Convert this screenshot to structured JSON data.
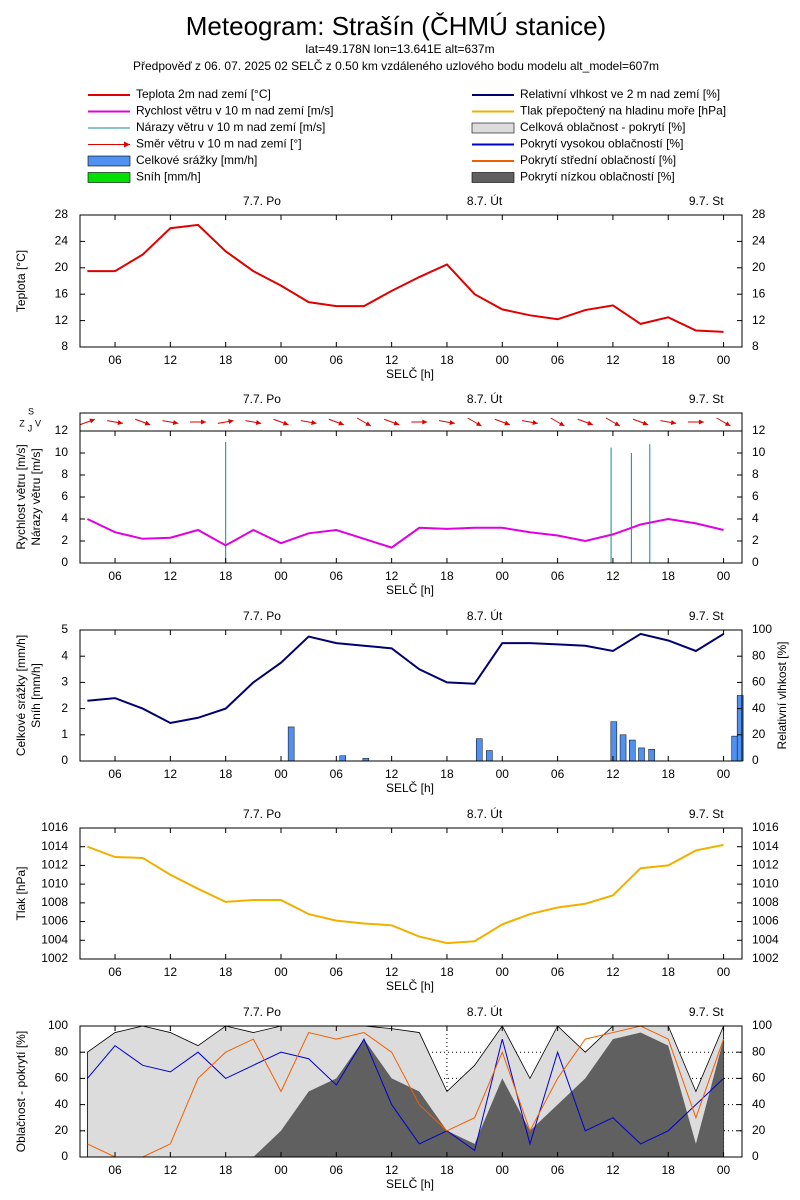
{
  "header": {
    "title": "Meteogram: Strašín (ČHMÚ stanice)",
    "location": "lat=49.178N lon=13.641E alt=637m",
    "forecast": "Předpověď z 06. 07. 2025 02 SELČ z 0.50 km vzdáleného uzlového bodu modelu alt_model=607m"
  },
  "chart_data": [
    {
      "type": "line",
      "ylabel": [
        "Teplota [°C]"
      ],
      "xlabel": "SELČ [h]",
      "xlim": [
        2.2,
        74
      ],
      "ylim": [
        8,
        28
      ],
      "yticks": [
        8,
        12,
        16,
        20,
        24,
        28
      ],
      "mirror_y": true,
      "xticks": [
        {
          "value": 6,
          "label": "06"
        },
        12,
        18,
        {
          "value": 24,
          "label": "00"
        },
        {
          "value": 30,
          "label": "06"
        },
        {
          "value": 36,
          "label": "12"
        },
        {
          "value": 42,
          "label": "18"
        },
        {
          "value": 48,
          "label": "00"
        },
        {
          "value": 54,
          "label": "06"
        },
        {
          "value": 60,
          "label": "12"
        },
        {
          "value": 66,
          "label": "18"
        },
        {
          "value": 72,
          "label": "00"
        }
      ],
      "day_ticks": [
        {
          "value": 24,
          "label": "7.7. Po"
        },
        {
          "value": 48,
          "label": "8.7. Út"
        },
        {
          "value": 72,
          "label": "9.7. St"
        }
      ],
      "x": [
        3,
        6,
        9,
        12,
        15,
        18,
        21,
        24,
        27,
        30,
        33,
        36,
        39,
        42,
        45,
        48,
        51,
        54,
        57,
        60,
        63,
        66,
        69,
        72
      ],
      "series": [
        {
          "name": "Teplota 2m nad zemí [°C]",
          "color": "#e00000",
          "kind": "line",
          "values": [
            19.5,
            19.5,
            22,
            26,
            26.5,
            22.5,
            19.5,
            17.3,
            14.8,
            14.2,
            14.2,
            16.5,
            18.6,
            20.5,
            16,
            13.7,
            12.8,
            12.2,
            13.6,
            14.3,
            11.5,
            12.5,
            10.5,
            10.3
          ]
        }
      ]
    },
    {
      "type": "wind",
      "ylabel": [
        "Rychlost větru [m/s]",
        "Nárazy větru [m/s]"
      ],
      "xlabel": "SELČ [h]",
      "compass": [
        "S",
        "Z",
        "J",
        "V"
      ],
      "xlim": [
        2.2,
        74
      ],
      "ylim": [
        0,
        12
      ],
      "yticks": [
        0,
        2,
        4,
        6,
        8,
        10,
        12
      ],
      "mirror_y": true,
      "xticks": [
        {
          "value": 6,
          "label": "06"
        },
        12,
        18,
        {
          "value": 24,
          "label": "00"
        },
        {
          "value": 30,
          "label": "06"
        },
        {
          "value": 36,
          "label": "12"
        },
        {
          "value": 42,
          "label": "18"
        },
        {
          "value": 48,
          "label": "00"
        },
        {
          "value": 54,
          "label": "06"
        },
        {
          "value": 60,
          "label": "12"
        },
        {
          "value": 66,
          "label": "18"
        },
        {
          "value": 72,
          "label": "00"
        }
      ],
      "day_ticks": [
        {
          "value": 24,
          "label": "7.7. Po"
        },
        {
          "value": 48,
          "label": "8.7. Út"
        },
        {
          "value": 72,
          "label": "9.7. St"
        }
      ],
      "x": [
        3,
        6,
        9,
        12,
        15,
        18,
        21,
        24,
        27,
        30,
        33,
        36,
        39,
        42,
        45,
        48,
        51,
        54,
        57,
        60,
        63,
        66,
        69,
        72
      ],
      "series": [
        {
          "name": "Rychlost větru v 10 m nad zemí [m/s]",
          "color": "#e000e0",
          "kind": "line",
          "values": [
            4,
            2.8,
            2.2,
            2.3,
            3,
            1.6,
            3,
            1.8,
            2.7,
            3,
            2.2,
            1.4,
            3.2,
            3.1,
            3.2,
            3.2,
            2.8,
            2.5,
            2,
            2.6,
            3.5,
            4,
            3.6,
            3
          ]
        },
        {
          "name": "Nárazy větru v 10 m nad zemí [m/s]",
          "color": "#108890",
          "kind": "spikes",
          "x": [
            18,
            59.8,
            62,
            64
          ],
          "values": [
            11,
            10.5,
            10,
            10.8
          ]
        },
        {
          "name": "Směr větru v 10 m nad zemí [°]",
          "color": "#e00000",
          "kind": "arrows",
          "values": [
            250,
            280,
            290,
            280,
            270,
            260,
            280,
            290,
            280,
            290,
            300,
            290,
            270,
            280,
            300,
            290,
            280,
            300,
            290,
            300,
            290,
            280,
            270,
            300
          ]
        }
      ]
    },
    {
      "type": "bar",
      "ylabel": [
        "Celkové srážky [mm/h]",
        "Sníh [mm/h]"
      ],
      "y2label": "Relativní vlhkost [%]",
      "xlabel": "SELČ [h]",
      "xlim": [
        2.2,
        74
      ],
      "ylim": [
        0,
        5
      ],
      "yticks": [
        0,
        1,
        2,
        3,
        4,
        5
      ],
      "y2lim": [
        0,
        100
      ],
      "y2ticks": [
        0,
        20,
        40,
        60,
        80,
        100
      ],
      "xticks": [
        {
          "value": 6,
          "label": "06"
        },
        12,
        18,
        {
          "value": 24,
          "label": "00"
        },
        {
          "value": 30,
          "label": "06"
        },
        {
          "value": 36,
          "label": "12"
        },
        {
          "value": 42,
          "label": "18"
        },
        {
          "value": 48,
          "label": "00"
        },
        {
          "value": 54,
          "label": "06"
        },
        {
          "value": 60,
          "label": "12"
        },
        {
          "value": 66,
          "label": "18"
        },
        {
          "value": 72,
          "label": "00"
        }
      ],
      "day_ticks": [
        {
          "value": 24,
          "label": "7.7. Po"
        },
        {
          "value": 48,
          "label": "8.7. Út"
        },
        {
          "value": 72,
          "label": "9.7. St"
        }
      ],
      "x": [
        3,
        6,
        9,
        12,
        15,
        18,
        21,
        24,
        27,
        30,
        33,
        36,
        39,
        42,
        45,
        48,
        51,
        54,
        57,
        60,
        63,
        66,
        69,
        72
      ],
      "series": [
        {
          "name": "Celkové srážky [mm/h]",
          "color": "#5090f0",
          "kind": "bars",
          "x": [
            25.1,
            30.7,
            33.2,
            45.5,
            46.6,
            60.1,
            61.1,
            62.1,
            63.1,
            64.2,
            73.2,
            73.8
          ],
          "values": [
            1.3,
            0.2,
            0.1,
            0.85,
            0.4,
            1.5,
            1,
            0.8,
            0.5,
            0.45,
            0.95,
            2.5
          ]
        },
        {
          "name": "Sníh [mm/h]",
          "color": "#00e000",
          "kind": "bars",
          "x": [
            25.1,
            45.5,
            60.1
          ],
          "values": [
            0,
            0,
            0
          ]
        },
        {
          "name": "Relativní vlhkost ve 2 m nad zemí [%]",
          "color": "#000070",
          "kind": "line",
          "axis": "y2",
          "values": [
            46,
            48,
            40,
            29,
            33,
            40,
            60,
            75,
            95,
            90,
            88,
            86,
            70,
            60,
            59,
            90,
            90,
            89,
            88,
            84,
            97,
            92,
            84,
            97
          ]
        }
      ]
    },
    {
      "type": "line",
      "ylabel": [
        "Tlak [hPa]"
      ],
      "xlabel": "SELČ [h]",
      "xlim": [
        2.2,
        74
      ],
      "ylim": [
        1002,
        1016
      ],
      "yticks": [
        1002,
        1004,
        1006,
        1008,
        1010,
        1012,
        1014,
        1016
      ],
      "mirror_y": true,
      "xticks": [
        {
          "value": 6,
          "label": "06"
        },
        12,
        18,
        {
          "value": 24,
          "label": "00"
        },
        {
          "value": 30,
          "label": "06"
        },
        {
          "value": 36,
          "label": "12"
        },
        {
          "value": 42,
          "label": "18"
        },
        {
          "value": 48,
          "label": "00"
        },
        {
          "value": 54,
          "label": "06"
        },
        {
          "value": 60,
          "label": "12"
        },
        {
          "value": 66,
          "label": "18"
        },
        {
          "value": 72,
          "label": "00"
        }
      ],
      "day_ticks": [
        {
          "value": 24,
          "label": "7.7. Po"
        },
        {
          "value": 48,
          "label": "8.7. Út"
        },
        {
          "value": 72,
          "label": "9.7. St"
        }
      ],
      "x": [
        3,
        6,
        9,
        12,
        15,
        18,
        21,
        24,
        27,
        30,
        33,
        36,
        39,
        42,
        45,
        48,
        51,
        54,
        57,
        60,
        63,
        66,
        69,
        72
      ],
      "series": [
        {
          "name": "Tlak přepočtený na hladinu moře [hPa]",
          "color": "#f0b000",
          "kind": "line",
          "values": [
            1014,
            1012.9,
            1012.8,
            1011,
            1009.5,
            1008.1,
            1008.3,
            1008.3,
            1006.8,
            1006.1,
            1005.8,
            1005.6,
            1004.4,
            1003.7,
            1003.9,
            1005.7,
            1006.8,
            1007.5,
            1007.9,
            1008.8,
            1011.7,
            1012,
            1013.6,
            1014.2
          ]
        }
      ]
    },
    {
      "type": "area",
      "ylabel": [
        "Oblačnost - pokrytí [%]"
      ],
      "xlabel": "SELČ [h]",
      "grid": true,
      "xlim": [
        2.2,
        74
      ],
      "ylim": [
        0,
        100
      ],
      "yticks": [
        0,
        20,
        40,
        60,
        80,
        100
      ],
      "mirror_y": true,
      "xticks": [
        {
          "value": 6,
          "label": "06"
        },
        12,
        18,
        {
          "value": 24,
          "label": "00"
        },
        {
          "value": 30,
          "label": "06"
        },
        {
          "value": 36,
          "label": "12"
        },
        {
          "value": 42,
          "label": "18"
        },
        {
          "value": 48,
          "label": "00"
        },
        {
          "value": 54,
          "label": "06"
        },
        {
          "value": 60,
          "label": "12"
        },
        {
          "value": 66,
          "label": "18"
        },
        {
          "value": 72,
          "label": "00"
        }
      ],
      "day_ticks": [
        {
          "value": 24,
          "label": "7.7. Po"
        },
        {
          "value": 48,
          "label": "8.7. Út"
        },
        {
          "value": 72,
          "label": "9.7. St"
        }
      ],
      "x": [
        3,
        6,
        9,
        12,
        15,
        18,
        21,
        24,
        27,
        30,
        33,
        36,
        39,
        42,
        45,
        48,
        51,
        54,
        57,
        60,
        63,
        66,
        69,
        72
      ],
      "series": [
        {
          "name": "Celková oblačnost - pokrytí [%]",
          "color": "#dcdcdc",
          "kind": "area",
          "values": [
            80,
            95,
            100,
            95,
            85,
            100,
            95,
            100,
            100,
            100,
            100,
            98,
            95,
            50,
            70,
            100,
            60,
            100,
            80,
            100,
            100,
            100,
            50,
            100
          ]
        },
        {
          "name": "Pokrytí vysokou oblačností [%]",
          "color": "#0000d0",
          "kind": "line",
          "values": [
            60,
            85,
            70,
            65,
            80,
            60,
            70,
            80,
            75,
            55,
            90,
            40,
            10,
            20,
            5,
            90,
            10,
            80,
            20,
            30,
            10,
            20,
            40,
            60
          ]
        },
        {
          "name": "Pokrytí střední oblačností [%]",
          "color": "#f06000",
          "kind": "line",
          "values": [
            10,
            0,
            0,
            10,
            60,
            80,
            90,
            50,
            95,
            90,
            95,
            80,
            40,
            20,
            30,
            80,
            20,
            60,
            90,
            95,
            100,
            90,
            30,
            90
          ]
        },
        {
          "name": "Pokrytí nízkou oblačností [%]",
          "color": "#606060",
          "kind": "area",
          "values": [
            0,
            0,
            0,
            0,
            0,
            0,
            0,
            20,
            50,
            60,
            90,
            60,
            50,
            20,
            10,
            60,
            20,
            40,
            60,
            90,
            95,
            85,
            10,
            90
          ]
        }
      ]
    }
  ]
}
